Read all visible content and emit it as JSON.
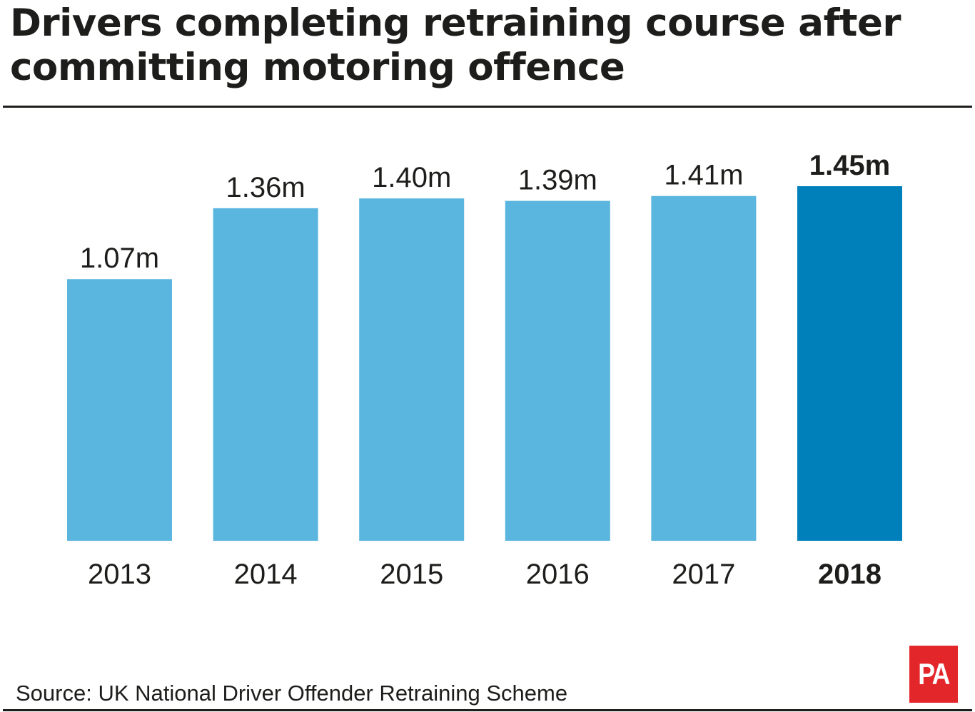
{
  "title": "Drivers completing retraining course after committing motoring offence",
  "source": "Source: UK National Driver Offender Retraining Scheme",
  "logo": "PA",
  "colors": {
    "bar": "#5ab6df",
    "highlight": "#0080bb",
    "text": "#1d1d1b",
    "logo": "#e3262a"
  },
  "chart_data": {
    "type": "bar",
    "title": "Drivers completing retraining course after committing motoring offence",
    "categories": [
      "2013",
      "2014",
      "2015",
      "2016",
      "2017",
      "2018"
    ],
    "values": [
      1.07,
      1.36,
      1.4,
      1.39,
      1.41,
      1.45
    ],
    "labels": [
      "1.07m",
      "1.36m",
      "1.40m",
      "1.39m",
      "1.41m",
      "1.45m"
    ],
    "unit": "million",
    "highlight": "2018",
    "ylim": [
      0,
      1.45
    ],
    "grid": false,
    "xlabel": "",
    "ylabel": ""
  }
}
